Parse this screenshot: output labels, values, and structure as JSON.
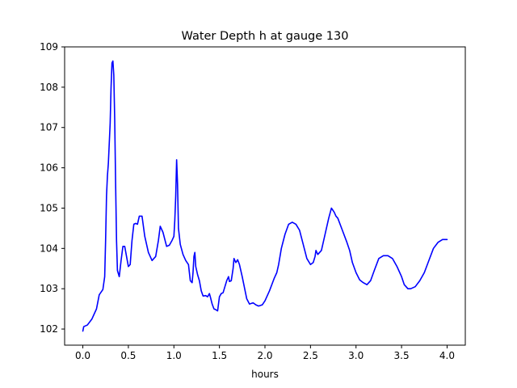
{
  "chart_data": {
    "type": "line",
    "title": "Water Depth h at gauge 130",
    "xlabel": "hours",
    "ylabel": "",
    "xlim": [
      -0.2,
      4.2
    ],
    "ylim": [
      101.6,
      109.0
    ],
    "x_ticks": [
      0.0,
      0.5,
      1.0,
      1.5,
      2.0,
      2.5,
      3.0,
      3.5,
      4.0
    ],
    "x_tick_labels": [
      "0.0",
      "0.5",
      "1.0",
      "1.5",
      "2.0",
      "2.5",
      "3.0",
      "3.5",
      "4.0"
    ],
    "y_ticks": [
      102,
      103,
      104,
      105,
      106,
      107,
      108,
      109
    ],
    "y_tick_labels": [
      "102",
      "103",
      "104",
      "105",
      "106",
      "107",
      "108",
      "109"
    ],
    "grid": false,
    "series": [
      {
        "color": "#0000ff",
        "points": [
          [
            0.0,
            101.95
          ],
          [
            0.01,
            102.06
          ],
          [
            0.05,
            102.1
          ],
          [
            0.1,
            102.25
          ],
          [
            0.15,
            102.5
          ],
          [
            0.18,
            102.85
          ],
          [
            0.22,
            102.98
          ],
          [
            0.24,
            103.3
          ],
          [
            0.25,
            104.2
          ],
          [
            0.26,
            105.3
          ],
          [
            0.27,
            105.8
          ],
          [
            0.28,
            106.1
          ],
          [
            0.3,
            107.1
          ],
          [
            0.31,
            108.0
          ],
          [
            0.32,
            108.6
          ],
          [
            0.33,
            108.65
          ],
          [
            0.34,
            108.3
          ],
          [
            0.35,
            107.2
          ],
          [
            0.36,
            105.6
          ],
          [
            0.37,
            104.2
          ],
          [
            0.38,
            103.45
          ],
          [
            0.4,
            103.3
          ],
          [
            0.42,
            103.7
          ],
          [
            0.44,
            104.05
          ],
          [
            0.46,
            104.05
          ],
          [
            0.48,
            103.8
          ],
          [
            0.5,
            103.55
          ],
          [
            0.52,
            103.6
          ],
          [
            0.54,
            104.2
          ],
          [
            0.56,
            104.6
          ],
          [
            0.58,
            104.62
          ],
          [
            0.6,
            104.6
          ],
          [
            0.62,
            104.8
          ],
          [
            0.65,
            104.8
          ],
          [
            0.68,
            104.3
          ],
          [
            0.72,
            103.9
          ],
          [
            0.76,
            103.7
          ],
          [
            0.8,
            103.8
          ],
          [
            0.83,
            104.2
          ],
          [
            0.85,
            104.55
          ],
          [
            0.88,
            104.4
          ],
          [
            0.92,
            104.05
          ],
          [
            0.95,
            104.08
          ],
          [
            0.98,
            104.2
          ],
          [
            1.0,
            104.3
          ],
          [
            1.01,
            104.7
          ],
          [
            1.02,
            105.3
          ],
          [
            1.03,
            106.2
          ],
          [
            1.04,
            105.6
          ],
          [
            1.05,
            104.5
          ],
          [
            1.07,
            104.1
          ],
          [
            1.1,
            103.85
          ],
          [
            1.13,
            103.7
          ],
          [
            1.16,
            103.6
          ],
          [
            1.18,
            103.2
          ],
          [
            1.2,
            103.15
          ],
          [
            1.21,
            103.4
          ],
          [
            1.22,
            103.8
          ],
          [
            1.23,
            103.9
          ],
          [
            1.24,
            103.55
          ],
          [
            1.26,
            103.35
          ],
          [
            1.28,
            103.2
          ],
          [
            1.3,
            102.95
          ],
          [
            1.32,
            102.82
          ],
          [
            1.35,
            102.83
          ],
          [
            1.37,
            102.8
          ],
          [
            1.39,
            102.88
          ],
          [
            1.4,
            102.8
          ],
          [
            1.42,
            102.62
          ],
          [
            1.44,
            102.5
          ],
          [
            1.46,
            102.48
          ],
          [
            1.48,
            102.45
          ],
          [
            1.5,
            102.8
          ],
          [
            1.52,
            102.88
          ],
          [
            1.54,
            102.9
          ],
          [
            1.56,
            103.05
          ],
          [
            1.58,
            103.2
          ],
          [
            1.6,
            103.3
          ],
          [
            1.61,
            103.18
          ],
          [
            1.63,
            103.2
          ],
          [
            1.65,
            103.5
          ],
          [
            1.66,
            103.75
          ],
          [
            1.68,
            103.65
          ],
          [
            1.7,
            103.72
          ],
          [
            1.72,
            103.6
          ],
          [
            1.75,
            103.3
          ],
          [
            1.8,
            102.75
          ],
          [
            1.83,
            102.62
          ],
          [
            1.87,
            102.65
          ],
          [
            1.9,
            102.6
          ],
          [
            1.93,
            102.57
          ],
          [
            1.97,
            102.6
          ],
          [
            2.0,
            102.7
          ],
          [
            2.05,
            102.95
          ],
          [
            2.1,
            103.25
          ],
          [
            2.13,
            103.4
          ],
          [
            2.15,
            103.6
          ],
          [
            2.18,
            104.0
          ],
          [
            2.22,
            104.35
          ],
          [
            2.26,
            104.6
          ],
          [
            2.3,
            104.65
          ],
          [
            2.34,
            104.6
          ],
          [
            2.38,
            104.45
          ],
          [
            2.42,
            104.1
          ],
          [
            2.46,
            103.75
          ],
          [
            2.5,
            103.6
          ],
          [
            2.53,
            103.65
          ],
          [
            2.55,
            103.8
          ],
          [
            2.56,
            103.95
          ],
          [
            2.58,
            103.85
          ],
          [
            2.62,
            103.95
          ],
          [
            2.66,
            104.35
          ],
          [
            2.7,
            104.75
          ],
          [
            2.73,
            105.0
          ],
          [
            2.76,
            104.9
          ],
          [
            2.78,
            104.8
          ],
          [
            2.8,
            104.75
          ],
          [
            2.85,
            104.45
          ],
          [
            2.9,
            104.15
          ],
          [
            2.93,
            103.95
          ],
          [
            2.96,
            103.65
          ],
          [
            3.0,
            103.4
          ],
          [
            3.04,
            103.22
          ],
          [
            3.08,
            103.15
          ],
          [
            3.12,
            103.1
          ],
          [
            3.16,
            103.2
          ],
          [
            3.2,
            103.45
          ],
          [
            3.25,
            103.75
          ],
          [
            3.3,
            103.82
          ],
          [
            3.35,
            103.82
          ],
          [
            3.4,
            103.75
          ],
          [
            3.45,
            103.55
          ],
          [
            3.5,
            103.3
          ],
          [
            3.53,
            103.1
          ],
          [
            3.57,
            103.0
          ],
          [
            3.6,
            103.0
          ],
          [
            3.65,
            103.05
          ],
          [
            3.7,
            103.2
          ],
          [
            3.75,
            103.4
          ],
          [
            3.8,
            103.7
          ],
          [
            3.85,
            104.0
          ],
          [
            3.9,
            104.15
          ],
          [
            3.95,
            104.22
          ],
          [
            4.0,
            104.22
          ]
        ]
      }
    ]
  }
}
